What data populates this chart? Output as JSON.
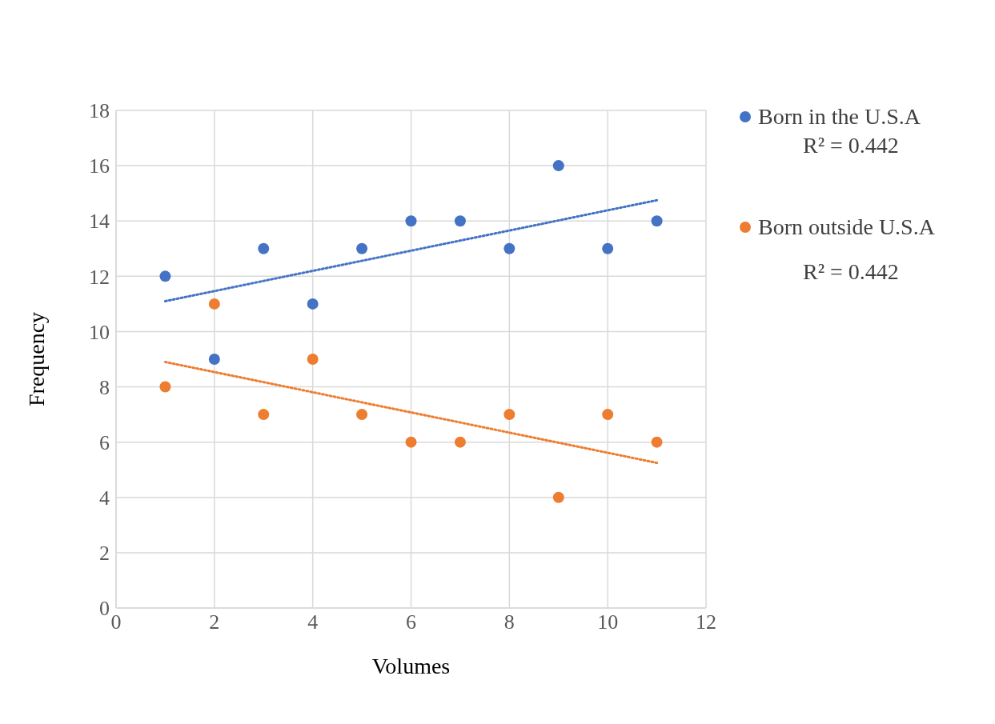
{
  "chart_data": {
    "type": "scatter",
    "xlabel": "Volumes",
    "ylabel": "Frequency",
    "xlim": [
      0,
      12
    ],
    "xticks": [
      0,
      2,
      4,
      6,
      8,
      10,
      12
    ],
    "ylim": [
      0,
      18
    ],
    "yticks": [
      0,
      2,
      4,
      6,
      8,
      10,
      12,
      14,
      16,
      18
    ],
    "grid": true,
    "legend": "right",
    "marker": "circle",
    "annotations": [
      "R² = 0.442",
      "R² = 0.442"
    ],
    "series": [
      {
        "name": "Born in the U.S.A",
        "color": "#4472c4",
        "x": [
          1,
          2,
          3,
          4,
          5,
          6,
          7,
          8,
          9,
          10,
          11
        ],
        "values": [
          12,
          9,
          13,
          11,
          13,
          14,
          14,
          13,
          16,
          13,
          14
        ]
      },
      {
        "name": "Born outside U.S.A",
        "color": "#ed7d31",
        "x": [
          1,
          2,
          3,
          4,
          5,
          6,
          7,
          8,
          9,
          10,
          11
        ],
        "values": [
          8,
          11,
          7,
          9,
          7,
          6,
          6,
          7,
          4,
          7,
          6
        ]
      },
      {
        "type": "line",
        "color": "#4472c4",
        "line_style": "dotted",
        "marker": "none",
        "x": [
          1,
          11
        ],
        "values": [
          11.1,
          14.75
        ]
      },
      {
        "type": "line",
        "color": "#ed7d31",
        "line_style": "dotted",
        "marker": "none",
        "x": [
          1,
          11
        ],
        "values": [
          8.9,
          5.25
        ]
      }
    ]
  }
}
